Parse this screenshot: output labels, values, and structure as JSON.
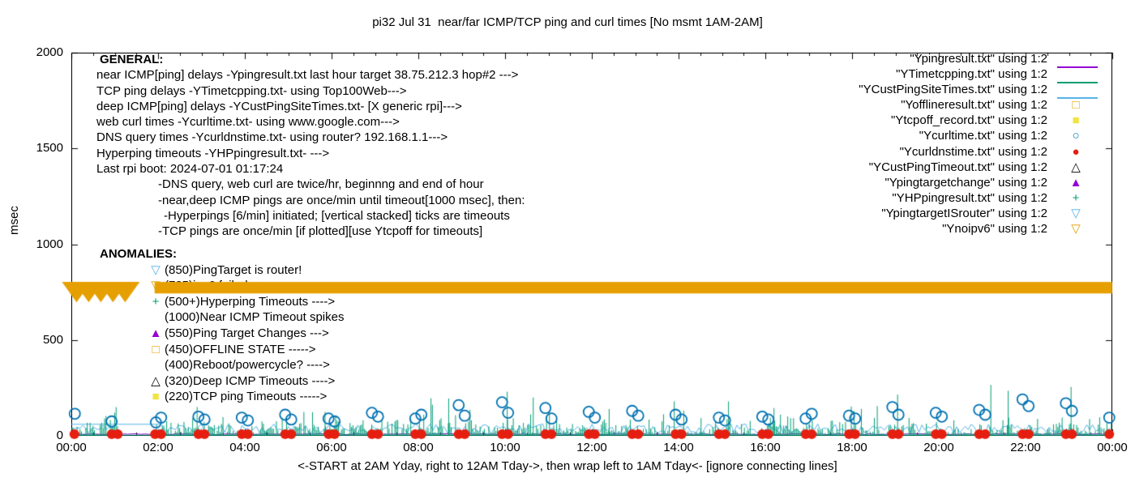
{
  "title": "pi32 Jul 31  near/far ICMP/TCP ping and curl times [No msmt 1AM-2AM]",
  "axes": {
    "ylabel": "msec",
    "xlabel": "<-START at 2AM Yday, right to 12AM Tday->, then wrap left to 1AM Tday<- [ignore connecting lines]",
    "y_ticks": [
      0,
      500,
      1000,
      1500,
      2000
    ],
    "x_tick_labels": [
      "00:00",
      "02:00",
      "04:00",
      "06:00",
      "08:00",
      "10:00",
      "12:00",
      "14:00",
      "16:00",
      "18:00",
      "20:00",
      "22:00",
      "00:00"
    ],
    "x_tick_hours": [
      0,
      2,
      4,
      6,
      8,
      10,
      12,
      14,
      16,
      18,
      20,
      22,
      24
    ]
  },
  "general": {
    "heading": "GENERAL:",
    "lines": [
      {
        "text": "near ICMP[ping] delays -Ypingresult.txt last hour target 38.75.212.3 hop#2 --->",
        "indent": 0
      },
      {
        "text": "TCP ping delays -YTimetcpping.txt- using Top100Web--->",
        "indent": 0
      },
      {
        "text": "deep ICMP[ping] delays -YCustPingSiteTimes.txt- [X generic rpi]--->",
        "indent": 0
      },
      {
        "text": "web curl times -Ycurltime.txt- using www.google.com--->",
        "indent": 0
      },
      {
        "text": "DNS query times -Ycurldnstime.txt- using router? 192.168.1.1--->",
        "indent": 0
      },
      {
        "text": "Hyperping timeouts -YHPpingresult.txt- --->",
        "indent": 0
      },
      {
        "text": "Last rpi boot: 2024-07-01 01:17:24",
        "indent": 0
      },
      {
        "text": "-DNS query, web curl are twice/hr, beginnng and end of hour",
        "indent": 76
      },
      {
        "text": "-near,deep ICMP pings are once/min until timeout[1000 msec], then:",
        "indent": 76
      },
      {
        "text": "-Hyperpings [6/min] initiated; [vertical stacked] ticks are timeouts",
        "indent": 83
      },
      {
        "text": "-TCP pings are once/min [if plotted][use Ytcpoff for timeouts]",
        "indent": 76
      }
    ]
  },
  "anomalies": {
    "heading": "ANOMALIES:",
    "items": [
      {
        "marker": "tri-down-open",
        "color": "#56B4E9",
        "text": "(850)PingTarget is router!"
      },
      {
        "marker": "tri-down-open",
        "color": "#E69F00",
        "text": "(725)ipv6 failed ->"
      },
      {
        "marker": "plus",
        "color": "#009E73",
        "text": "(500+)Hyperping Timeouts ---->"
      },
      {
        "marker": "none",
        "color": "#000000",
        "text": "(1000)Near ICMP Timeout spikes"
      },
      {
        "marker": "tri-up-filled",
        "color": "#9400D3",
        "text": "(550)Ping Target Changes --->"
      },
      {
        "marker": "square-open",
        "color": "#E69F00",
        "text": "(450)OFFLINE STATE ----->"
      },
      {
        "marker": "none",
        "color": "#000000",
        "text": "(400)Reboot/powercycle? ---->"
      },
      {
        "marker": "tri-up-open",
        "color": "#000000",
        "text": "(320)Deep ICMP Timeouts ---->"
      },
      {
        "marker": "square-filled",
        "color": "#F0E442",
        "text": "(220)TCP ping Timeouts ----->"
      }
    ]
  },
  "chart_data": {
    "type": "line",
    "title": "pi32 Jul 31  near/far ICMP/TCP ping and curl times [No msmt 1AM-2AM]",
    "xlabel": "<-START at 2AM Yday, right to 12AM Tday->, then wrap left to 1AM Tday<- [ignore connecting lines]",
    "ylabel": "msec",
    "ylim": [
      0,
      2000
    ],
    "x_range_hours": [
      0,
      24
    ],
    "grid": false,
    "legend_position": "top-right",
    "no_measurement_gap_hours": [
      1.08,
      1.92
    ],
    "series": [
      {
        "label": "\"Ypingresult.txt\" using 1:2",
        "color": "#9400D3",
        "style": "line",
        "role": "near-icmp-ping",
        "baseline_msec": 6,
        "jitter_msec": 5
      },
      {
        "label": "\"YTimetcpping.txt\" using 1:2",
        "color": "#009E73",
        "style": "line",
        "role": "tcp-ping",
        "noise": {
          "seed": 7,
          "step_hours": 0.0333,
          "base_msec": 5,
          "max_msec": 105,
          "tall_prob": 0.05,
          "tall_extra_msec": 80
        },
        "spikes": [
          [
            2.9,
            150
          ],
          [
            5.85,
            125
          ],
          [
            8.7,
            195
          ],
          [
            10.05,
            230
          ],
          [
            10.65,
            200
          ],
          [
            12.4,
            140
          ],
          [
            13.9,
            180
          ],
          [
            16.2,
            145
          ],
          [
            19.05,
            215
          ],
          [
            21.2,
            265
          ],
          [
            21.6,
            235
          ],
          [
            23.05,
            255
          ]
        ]
      },
      {
        "label": "\"YCustPingSiteTimes.txt\" using 1:2",
        "color": "#56B4E9",
        "style": "line",
        "role": "deep-icmp-ping",
        "scallop": {
          "seed": 11,
          "step_hours": 0.0667,
          "min_msec": 10,
          "max_msec": 62
        },
        "flat_segment": {
          "from": 0,
          "to": 2.05,
          "msec": 60
        }
      },
      {
        "label": "\"Yofflineresult.txt\" using 1:2",
        "color": "#E69F00",
        "marker": "square-open",
        "points": []
      },
      {
        "label": "\"Ytcpoff_record.txt\" using 1:2",
        "color": "#F0E442",
        "marker": "square-filled",
        "points": []
      },
      {
        "label": "\"Ycurltime.txt\" using 1:2",
        "color": "#0072B2",
        "marker": "circle-open",
        "points": [
          [
            0.08,
            115
          ],
          [
            0.93,
            75
          ],
          [
            1.95,
            70
          ],
          [
            2.07,
            95
          ],
          [
            2.93,
            100
          ],
          [
            3.07,
            85
          ],
          [
            3.93,
            95
          ],
          [
            4.07,
            80
          ],
          [
            4.93,
            110
          ],
          [
            5.07,
            85
          ],
          [
            5.93,
            90
          ],
          [
            6.07,
            75
          ],
          [
            6.93,
            120
          ],
          [
            7.07,
            100
          ],
          [
            7.93,
            90
          ],
          [
            8.07,
            110
          ],
          [
            8.93,
            160
          ],
          [
            9.07,
            105
          ],
          [
            9.93,
            175
          ],
          [
            10.07,
            120
          ],
          [
            10.93,
            145
          ],
          [
            11.07,
            90
          ],
          [
            11.93,
            125
          ],
          [
            12.07,
            95
          ],
          [
            12.93,
            130
          ],
          [
            13.07,
            105
          ],
          [
            13.93,
            110
          ],
          [
            14.07,
            85
          ],
          [
            14.93,
            95
          ],
          [
            15.07,
            80
          ],
          [
            15.93,
            100
          ],
          [
            16.07,
            85
          ],
          [
            16.93,
            90
          ],
          [
            17.07,
            115
          ],
          [
            17.93,
            105
          ],
          [
            18.07,
            90
          ],
          [
            18.93,
            150
          ],
          [
            19.07,
            110
          ],
          [
            19.93,
            120
          ],
          [
            20.07,
            100
          ],
          [
            20.93,
            135
          ],
          [
            21.07,
            110
          ],
          [
            21.93,
            190
          ],
          [
            22.07,
            155
          ],
          [
            22.93,
            170
          ],
          [
            23.07,
            130
          ],
          [
            23.93,
            95
          ]
        ]
      },
      {
        "label": "\"Ycurldnstime.txt\" using 1:2",
        "color": "#E51E10",
        "marker": "circle-filled",
        "hourly_pairs": {
          "hours_from": 0,
          "hours_to": 24,
          "offset": 0.07,
          "msec": 8
        }
      },
      {
        "label": "\"YCustPingTimeout.txt\" using 1:2",
        "color": "#000000",
        "marker": "tri-up-open",
        "points": []
      },
      {
        "label": "\"Ypingtargetchange\" using 1:2",
        "color": "#9400D3",
        "marker": "tri-up-filled",
        "points": []
      },
      {
        "label": "\"YHPpingresult.txt\" using 1:2",
        "color": "#009E73",
        "marker": "plus",
        "points": []
      },
      {
        "label": "\"YpingtargetISrouter\" using 1:2",
        "color": "#56B4E9",
        "marker": "tri-down-open",
        "points": []
      },
      {
        "label": "\"Ynoipv6\" using 1:2",
        "color": "#E69F00",
        "marker": "tri-down-open",
        "band": {
          "center_msec": 773,
          "half_height_msec": 30,
          "segments_hours": [
            [
              0,
              1.3
            ],
            [
              1.92,
              24
            ]
          ],
          "big_marker_hours": [
            0.12,
            0.4,
            0.68,
            0.96,
            1.24
          ],
          "big_marker_px": 36
        }
      }
    ]
  }
}
